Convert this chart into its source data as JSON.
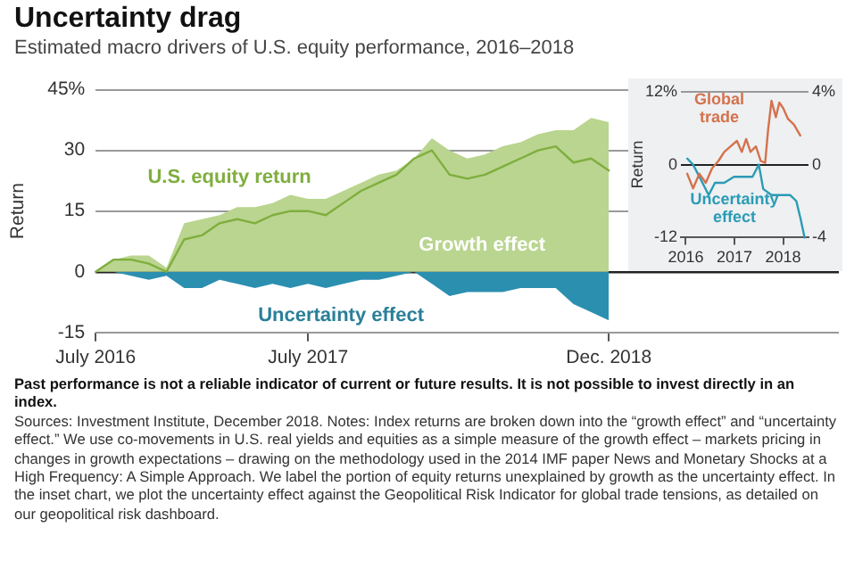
{
  "chart_data": [
    {
      "type": "area",
      "title": "Uncertainty drag",
      "subtitle": "Estimated macro drivers of U.S. equity performance, 2016–2018",
      "ylabel": "Return",
      "x": [
        "2016-07",
        "2016-08",
        "2016-09",
        "2016-10",
        "2016-11",
        "2016-12",
        "2017-01",
        "2017-02",
        "2017-03",
        "2017-04",
        "2017-05",
        "2017-06",
        "2017-07",
        "2017-08",
        "2017-09",
        "2017-10",
        "2017-11",
        "2017-12",
        "2018-01",
        "2018-02",
        "2018-03",
        "2018-04",
        "2018-05",
        "2018-06",
        "2018-07",
        "2018-08",
        "2018-09",
        "2018-10",
        "2018-11",
        "2018-12"
      ],
      "series": [
        {
          "name": "Growth effect",
          "color": "#b9d58f",
          "values": [
            0,
            3,
            4,
            4,
            1,
            12,
            13,
            14,
            16,
            16,
            17,
            19,
            18,
            18,
            20,
            22,
            24,
            25,
            28,
            33,
            30,
            28,
            29,
            31,
            32,
            34,
            35,
            35,
            38,
            37
          ]
        },
        {
          "name": "Uncertainty effect",
          "color": "#2b8fb0",
          "values": [
            0,
            0,
            -1,
            -2,
            -1,
            -4,
            -4,
            -2,
            -3,
            -4,
            -3,
            -4,
            -3,
            -4,
            -3,
            -2,
            -2,
            -1,
            0,
            -3,
            -6,
            -5,
            -5,
            -5,
            -4,
            -4,
            -4,
            -8,
            -10,
            -12
          ]
        },
        {
          "name": "U.S. equity return",
          "type": "line",
          "color": "#7fae3e",
          "values": [
            0,
            3,
            3,
            2,
            0,
            8,
            9,
            12,
            13,
            12,
            14,
            15,
            15,
            14,
            17,
            20,
            22,
            24,
            28,
            30,
            24,
            23,
            24,
            26,
            28,
            30,
            31,
            27,
            28,
            25
          ]
        }
      ],
      "xlim": [
        "2016-07",
        "2020-01"
      ],
      "xticks": [
        {
          "value": "2016-07",
          "label": "July 2016"
        },
        {
          "value": "2017-07",
          "label": "July 2017"
        },
        {
          "value": "2018-12",
          "label": "Dec. 2018"
        }
      ],
      "ylim": [
        -15,
        45
      ],
      "yticks": [
        -15,
        0,
        15,
        30,
        {
          "value": 45,
          "label": "45%"
        }
      ],
      "grid": "y",
      "legend": false,
      "marker": "none",
      "annotations": [
        "Past performance is not a reliable indicator of current or future results. It is not possible to invest directly in an index.",
        "Sources: Investment Institute, December 2018. Notes: Index returns are broken down into the “growth effect” and “uncertainty effect.” We use co-movements in U.S. real yields and equities as a simple measure of the growth effect – markets pricing in changes in growth expectations – drawing on the methodology used in the 2014 IMF paper News and Monetary Shocks at a High Frequency: A Simple Approach. We label the portion of equity returns unexplained by growth as the uncertainty effect. In the inset chart, we plot the uncertainty effect against the Geopolitical Risk Indicator for global trade tensions, as detailed on our geopolitical risk dashboard."
      ]
    },
    {
      "type": "line",
      "ylabel": "Return",
      "series": [
        {
          "name": "Global trade",
          "color": "#d4724c",
          "axis": "y2",
          "x": [
            2016.03,
            2016.15,
            2016.28,
            2016.41,
            2016.54,
            2016.67,
            2016.79,
            2016.92,
            2017.05,
            2017.15,
            2017.24,
            2017.33,
            2017.44,
            2017.54,
            2017.63,
            2017.69,
            2017.76,
            2017.85,
            2017.92,
            2018.0,
            2018.1,
            2018.22,
            2018.35
          ],
          "values": [
            -0.5,
            -1.3,
            -0.5,
            -1.0,
            -0.2,
            0.2,
            0.7,
            1.0,
            1.3,
            0.7,
            1.4,
            0.7,
            1.0,
            0.2,
            0.1,
            1.9,
            3.5,
            2.6,
            3.4,
            3.1,
            2.5,
            2.2,
            1.6
          ]
        },
        {
          "name": "Uncertainty effect",
          "color": "#2b9bb5",
          "x": [
            2016.03,
            2016.15,
            2016.28,
            2016.47,
            2016.6,
            2016.79,
            2016.99,
            2017.18,
            2017.37,
            2017.5,
            2017.59,
            2017.76,
            2017.95,
            2018.14,
            2018.27,
            2018.36,
            2018.44
          ],
          "values": [
            1,
            0,
            -2,
            -5,
            -3,
            -3,
            -2,
            -2,
            -2,
            0,
            -4,
            -5,
            -5,
            -5,
            -6,
            -9,
            -12
          ]
        }
      ],
      "xlim": [
        2015.9,
        2018.52
      ],
      "xticks": [
        2016,
        2017,
        2018
      ],
      "ylim": [
        -12,
        12
      ],
      "yticks": [
        -12,
        0,
        {
          "value": 12,
          "label": "12%"
        }
      ],
      "y2lim": [
        -4,
        4
      ],
      "y2ticks": [
        -4,
        0,
        {
          "value": 4,
          "label": "4%"
        }
      ],
      "grid": "y",
      "legend": false,
      "marker": "none"
    }
  ]
}
